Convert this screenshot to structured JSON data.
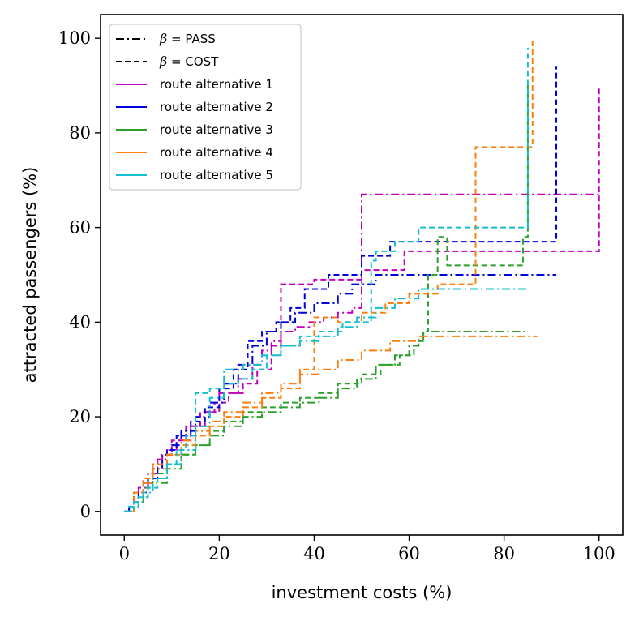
{
  "chart_data": {
    "type": "line",
    "step": true,
    "xlabel": "investment costs (%)",
    "ylabel": "attracted passengers (%)",
    "xlim": [
      -5,
      105
    ],
    "ylim": [
      -5,
      105
    ],
    "xticks": [
      0,
      20,
      40,
      60,
      80,
      100
    ],
    "yticks": [
      0,
      20,
      40,
      60,
      80,
      100
    ],
    "grid": false,
    "legend_position": "top-left",
    "linestyles": [
      {
        "name": "PASS",
        "symbol": "β",
        "label": "= PASS",
        "dash": "dashdot"
      },
      {
        "name": "COST",
        "symbol": "β",
        "label": "= COST",
        "dash": "dashed"
      }
    ],
    "series": [
      {
        "name": "route alternative 1",
        "color": "#bf00bf",
        "pass": {
          "x": [
            0,
            1,
            2,
            3,
            5,
            7,
            9,
            11,
            14,
            17,
            20,
            24,
            27,
            29,
            31,
            33,
            36,
            39,
            42,
            45,
            48,
            50,
            100
          ],
          "y": [
            0,
            1,
            3,
            5,
            8,
            11,
            13,
            15,
            18,
            21,
            25,
            28,
            31,
            34,
            36,
            38,
            39,
            40,
            41,
            42,
            43,
            67,
            67
          ]
        },
        "cost": {
          "x": [
            0,
            1,
            2,
            4,
            6,
            8,
            10,
            13,
            16,
            19,
            22,
            25,
            28,
            31,
            33,
            40,
            50,
            59,
            65,
            100,
            100
          ],
          "y": [
            0,
            1,
            4,
            7,
            10,
            12,
            15,
            18,
            21,
            23,
            25,
            27,
            30,
            35,
            48,
            49,
            51,
            55,
            55,
            55,
            90
          ]
        }
      },
      {
        "name": "route alternative 2",
        "color": "#0000dd",
        "pass": {
          "x": [
            0,
            1,
            2,
            4,
            6,
            8,
            10,
            12,
            15,
            18,
            21,
            24,
            27,
            30,
            33,
            36,
            40,
            45,
            48,
            53,
            91
          ],
          "y": [
            0,
            1,
            3,
            6,
            9,
            12,
            14,
            17,
            20,
            23,
            27,
            31,
            35,
            38,
            40,
            42,
            44,
            46,
            48,
            50,
            50
          ]
        },
        "cost": {
          "x": [
            0,
            1,
            3,
            5,
            7,
            9,
            11,
            14,
            17,
            20,
            23,
            26,
            29,
            32,
            35,
            38,
            43,
            50,
            56,
            91,
            91
          ],
          "y": [
            0,
            1,
            4,
            7,
            10,
            13,
            16,
            19,
            22,
            26,
            30,
            36,
            38,
            40,
            43,
            47,
            50,
            54,
            57,
            57,
            94
          ]
        }
      },
      {
        "name": "route alternative 3",
        "color": "#2ca02c",
        "pass": {
          "x": [
            0,
            2,
            4,
            6,
            9,
            12,
            15,
            18,
            21,
            25,
            29,
            33,
            37,
            41,
            45,
            49,
            53,
            57,
            60,
            62,
            63,
            85
          ],
          "y": [
            0,
            2,
            4,
            6,
            9,
            12,
            14,
            16,
            18,
            20,
            21,
            22,
            23,
            24,
            26,
            28,
            31,
            33,
            35,
            36,
            38,
            38
          ]
        },
        "cost": {
          "x": [
            0,
            2,
            4,
            6,
            9,
            12,
            15,
            18,
            21,
            25,
            29,
            33,
            37,
            41,
            45,
            50,
            54,
            58,
            61,
            62,
            63,
            64,
            66,
            68,
            84,
            85
          ],
          "y": [
            0,
            2,
            5,
            8,
            10,
            12,
            14,
            17,
            19,
            21,
            22,
            23,
            24,
            25,
            27,
            29,
            31,
            33,
            35,
            36,
            38,
            50,
            58,
            52,
            58,
            90
          ]
        }
      },
      {
        "name": "route alternative 4",
        "color": "#ff7f0e",
        "pass": {
          "x": [
            0,
            2,
            4,
            6,
            9,
            12,
            15,
            18,
            21,
            25,
            29,
            33,
            37,
            41,
            45,
            50,
            56,
            62,
            87
          ],
          "y": [
            0,
            3,
            6,
            9,
            12,
            15,
            17,
            19,
            21,
            23,
            25,
            27,
            29,
            30,
            32,
            34,
            36,
            37,
            37
          ]
        },
        "cost": {
          "x": [
            0,
            2,
            4,
            6,
            9,
            12,
            15,
            18,
            21,
            25,
            29,
            33,
            37,
            40,
            45,
            50,
            55,
            60,
            66,
            74,
            85,
            86,
            86
          ],
          "y": [
            0,
            4,
            7,
            10,
            12,
            14,
            16,
            18,
            20,
            22,
            24,
            26,
            30,
            41,
            40,
            42,
            44,
            46,
            48,
            77,
            77,
            77,
            100
          ]
        }
      },
      {
        "name": "route alternative 5",
        "color": "#17becf",
        "pass": {
          "x": [
            0,
            2,
            4,
            6,
            9,
            12,
            15,
            18,
            21,
            25,
            29,
            33,
            37,
            41,
            45,
            49,
            53,
            57,
            62,
            85
          ],
          "y": [
            0,
            2,
            4,
            7,
            10,
            13,
            18,
            24,
            30,
            31,
            33,
            35,
            36,
            37,
            39,
            41,
            43,
            45,
            47,
            47
          ]
        },
        "cost": {
          "x": [
            0,
            1,
            3,
            5,
            7,
            9,
            11,
            13,
            15,
            18,
            21,
            24,
            27,
            30,
            33,
            37,
            41,
            46,
            52,
            53,
            57,
            62,
            84,
            85
          ],
          "y": [
            0,
            1,
            3,
            5,
            7,
            10,
            13,
            16,
            25,
            26,
            27,
            28,
            30,
            33,
            35,
            37,
            38,
            40,
            53,
            55,
            57,
            60,
            60,
            98
          ]
        }
      }
    ]
  }
}
